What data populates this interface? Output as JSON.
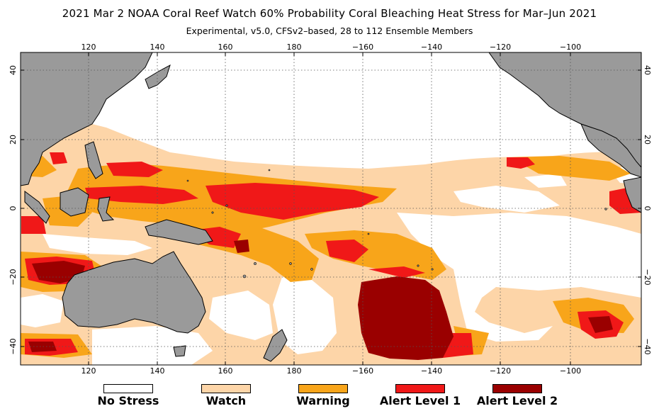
{
  "title": "2021 Mar 2 NOAA Coral Reef Watch 60% Probability Coral Bleaching Heat Stress for Mar–Jun 2021",
  "subtitle": "Experimental, v5.0, CFSv2–based, 28 to 112 Ensemble Members",
  "map": {
    "lon_ticks": [
      "120",
      "140",
      "160",
      "180",
      "−160",
      "−140",
      "−120",
      "−100"
    ],
    "lat_ticks": [
      "40",
      "20",
      "0",
      "−20",
      "−40"
    ],
    "colors": {
      "no_stress": "#ffffff",
      "watch": "#fdd5a8",
      "warning": "#f8a51a",
      "alert1": "#f01818",
      "alert2": "#9a0000",
      "land": "#9a9a9a"
    }
  },
  "legend": [
    {
      "label": "No Stress",
      "color": "#ffffff"
    },
    {
      "label": "Watch",
      "color": "#fdd5a8"
    },
    {
      "label": "Warning",
      "color": "#f8a51a"
    },
    {
      "label": "Alert Level 1",
      "color": "#f01818"
    },
    {
      "label": "Alert Level 2",
      "color": "#9a0000"
    }
  ]
}
